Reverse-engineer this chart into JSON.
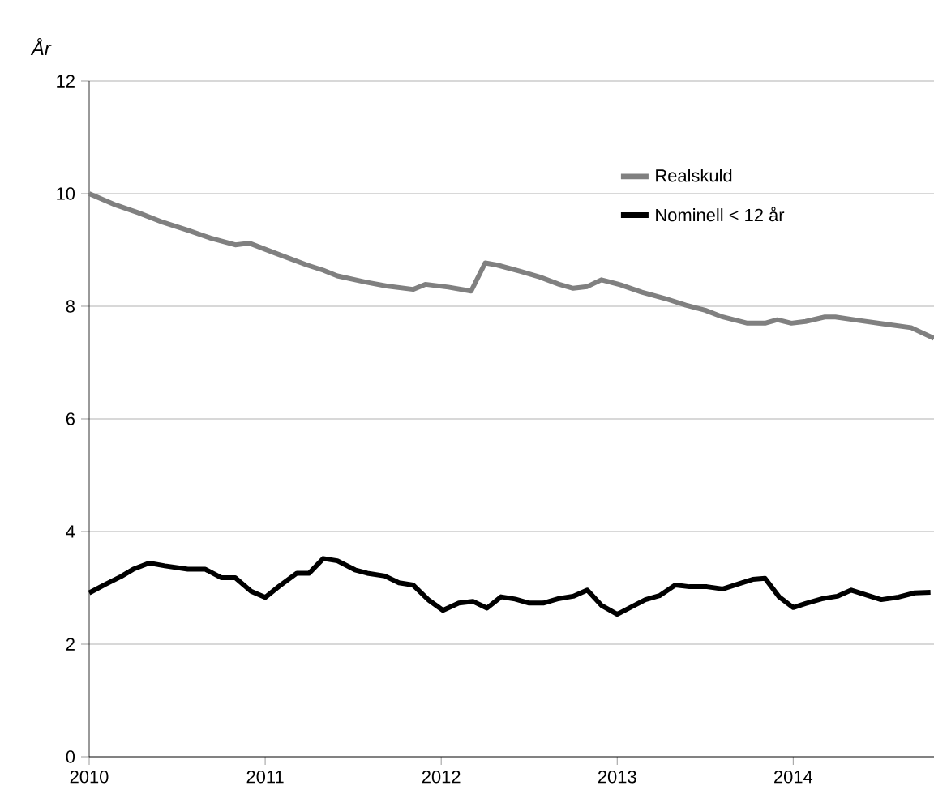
{
  "chart_data": {
    "type": "line",
    "ylabel": "År",
    "xlim": [
      2010,
      2014.8
    ],
    "ylim": [
      0,
      12
    ],
    "xticks": [
      2010,
      2011,
      2012,
      2013,
      2014
    ],
    "yticks": [
      0,
      2,
      4,
      6,
      8,
      10,
      12
    ],
    "grid": "y",
    "legend": "top right",
    "line_style": "solid",
    "marker": "none",
    "series": [
      {
        "name": "Realskuld",
        "color": "#808080",
        "x": [
          2010.0,
          2010.15,
          2010.28,
          2010.42,
          2010.56,
          2010.69,
          2010.83,
          2010.91,
          2011.06,
          2011.24,
          2011.33,
          2011.41,
          2011.57,
          2011.69,
          2011.84,
          2011.91,
          2012.04,
          2012.17,
          2012.25,
          2012.32,
          2012.45,
          2012.56,
          2012.67,
          2012.75,
          2012.83,
          2012.91,
          2013.02,
          2013.14,
          2013.27,
          2013.39,
          2013.5,
          2013.6,
          2013.74,
          2013.84,
          2013.91,
          2013.99,
          2014.07,
          2014.18,
          2014.24,
          2014.37,
          2014.53,
          2014.67,
          2014.8
        ],
        "values": [
          10.0,
          9.8,
          9.66,
          9.49,
          9.35,
          9.21,
          9.09,
          9.12,
          8.94,
          8.73,
          8.64,
          8.54,
          8.43,
          8.36,
          8.3,
          8.39,
          8.34,
          8.27,
          8.77,
          8.73,
          8.62,
          8.52,
          8.39,
          8.32,
          8.35,
          8.47,
          8.38,
          8.25,
          8.14,
          8.02,
          7.93,
          7.81,
          7.7,
          7.7,
          7.76,
          7.7,
          7.73,
          7.81,
          7.81,
          7.75,
          7.68,
          7.62,
          7.43
        ]
      },
      {
        "name": "Nominell < 12 år",
        "color": "#000000",
        "x": [
          2010.0,
          2010.09,
          2010.18,
          2010.25,
          2010.34,
          2010.43,
          2010.56,
          2010.66,
          2010.75,
          2010.83,
          2010.92,
          2011.0,
          2011.08,
          2011.18,
          2011.25,
          2011.33,
          2011.41,
          2011.51,
          2011.58,
          2011.68,
          2011.76,
          2011.84,
          2011.93,
          2012.01,
          2012.1,
          2012.18,
          2012.26,
          2012.34,
          2012.42,
          2012.5,
          2012.58,
          2012.67,
          2012.75,
          2012.83,
          2012.91,
          2013.0,
          2013.08,
          2013.16,
          2013.24,
          2013.33,
          2013.41,
          2013.51,
          2013.6,
          2013.7,
          2013.77,
          2013.84,
          2013.92,
          2014.0,
          2014.07,
          2014.17,
          2014.25,
          2014.33,
          2014.42,
          2014.5,
          2014.59,
          2014.69,
          2014.78
        ],
        "values": [
          2.91,
          3.06,
          3.2,
          3.33,
          3.44,
          3.39,
          3.33,
          3.33,
          3.18,
          3.18,
          2.94,
          2.83,
          3.03,
          3.26,
          3.26,
          3.52,
          3.48,
          3.32,
          3.26,
          3.21,
          3.09,
          3.05,
          2.78,
          2.6,
          2.73,
          2.76,
          2.64,
          2.84,
          2.8,
          2.73,
          2.73,
          2.81,
          2.85,
          2.96,
          2.69,
          2.53,
          2.66,
          2.79,
          2.86,
          3.05,
          3.02,
          3.02,
          2.98,
          3.08,
          3.15,
          3.17,
          2.84,
          2.65,
          2.72,
          2.81,
          2.85,
          2.96,
          2.87,
          2.79,
          2.83,
          2.91,
          2.92
        ]
      }
    ]
  }
}
